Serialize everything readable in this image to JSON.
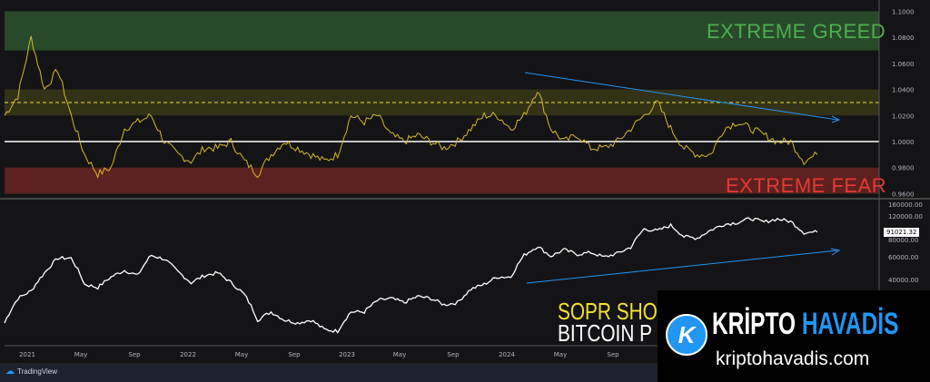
{
  "chart_data": [
    {
      "type": "line",
      "pane": "top",
      "yscale": "linear",
      "ylim": [
        0.96,
        1.1
      ],
      "yticks": [
        "1.1000",
        "1.0800",
        "1.0600",
        "1.0400",
        "1.0200",
        "1.0000",
        "0.9800",
        "0.9600"
      ],
      "zones": [
        {
          "label": "EXTREME GREED",
          "range": [
            1.07,
            1.1
          ],
          "color": "#4caf50"
        },
        {
          "label": "EXTREME FEAR",
          "range": [
            0.96,
            0.98
          ],
          "color": "#e53935"
        },
        {
          "label": "",
          "range": [
            1.02,
            1.04
          ],
          "color": "#6b6b1a"
        }
      ],
      "reference_lines": [
        {
          "value": 1.0,
          "color": "#ffffff",
          "style": "solid"
        },
        {
          "value": 1.03,
          "color": "#f5e132",
          "style": "dashed"
        }
      ],
      "trendline": {
        "from": [
          "2024-03",
          1.052
        ],
        "to": [
          "2025-12",
          1.017
        ],
        "color": "#2196f3"
      },
      "series": [
        {
          "color": "#d4b82a",
          "x_start": "2020-11",
          "step": "month",
          "values": [
            1.02,
            1.035,
            1.08,
            1.04,
            1.055,
            1.02,
            0.99,
            0.975,
            0.98,
            1.01,
            1.015,
            1.02,
            1.0,
            0.99,
            0.985,
            0.995,
            0.995,
            1.0,
            0.985,
            0.975,
            0.99,
            1.0,
            0.995,
            0.99,
            0.985,
            0.99,
            1.02,
            1.015,
            1.02,
            1.005,
            1.0,
            1.005,
            1.0,
            0.995,
            1.0,
            1.01,
            1.02,
            1.02,
            1.01,
            1.02,
            1.04,
            1.01,
            1.0,
            1.005,
            0.995,
            0.995,
            1.0,
            1.01,
            1.02,
            1.03,
            1.01,
            0.995,
            0.99,
            0.99,
            1.01,
            1.015,
            1.01,
            1.005,
            1.0,
            1.0,
            0.985,
            0.99
          ]
        }
      ]
    },
    {
      "type": "line",
      "pane": "bottom",
      "yscale": "log",
      "yticks": [
        "160000.00",
        "120000.00",
        "80000.00",
        "60000.00",
        "40000.00"
      ],
      "last_value_label": "91021.32",
      "trendline": {
        "from": [
          "2024-03",
          40000
        ],
        "to": [
          "2025-12",
          67000
        ],
        "color": "#2196f3"
      },
      "series": [
        {
          "color": "#ffffff",
          "x_start": "2020-11",
          "step": "month",
          "values": [
            19000,
            29000,
            33000,
            45000,
            58000,
            58000,
            37000,
            35000,
            42000,
            47000,
            43000,
            61000,
            57000,
            46000,
            38000,
            43000,
            45000,
            38000,
            31000,
            20000,
            23000,
            20000,
            19000,
            20000,
            17000,
            16500,
            23000,
            23000,
            28000,
            29000,
            27000,
            30000,
            29000,
            26000,
            27000,
            34000,
            37000,
            42000,
            42000,
            61000,
            71000,
            60000,
            67000,
            62000,
            64000,
            59000,
            63000,
            70000,
            96000,
            93000,
            102000,
            84000,
            82000,
            94000,
            104000,
            107000,
            115000,
            108000,
            114000,
            109000,
            90000,
            91021
          ]
        }
      ]
    }
  ],
  "xticks": [
    "2021",
    "May",
    "Sep",
    "2022",
    "May",
    "Sep",
    "2023",
    "May",
    "Sep",
    "2024",
    "May",
    "Sep"
  ],
  "overlay": {
    "line1": "SOPR SHO",
    "line2": "BITCOIN P"
  },
  "zone_labels": {
    "greed": "EXTREME GREED",
    "fear": "EXTREME FEAR"
  },
  "footer": {
    "brand": "TradingView"
  },
  "watermark": {
    "brand1": "KRİPTO",
    "brand2": "HAVADİS",
    "site": "kriptohavadis.com",
    "logo_letter": "K"
  }
}
